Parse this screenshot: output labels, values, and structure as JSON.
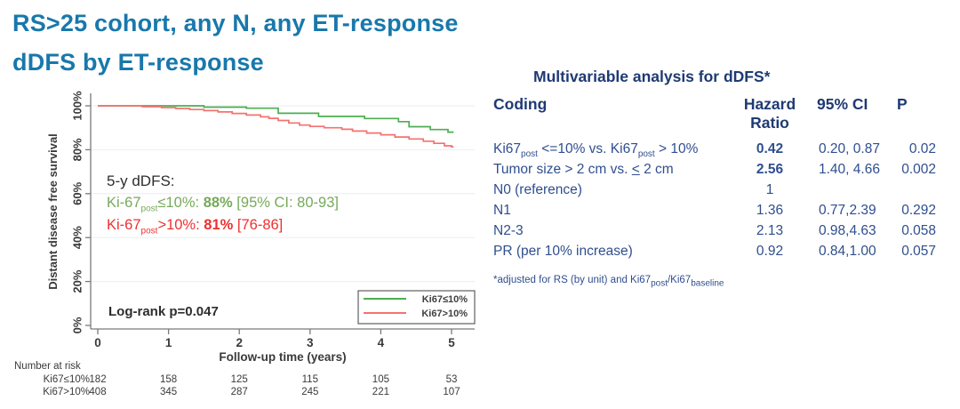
{
  "header": {
    "title_line1": "RS>25 cohort, any N, any ET-response",
    "title_line2": "dDFS by ET-response",
    "color": "#1878ab"
  },
  "chart_data": {
    "type": "line",
    "subtype": "kaplan-meier-step",
    "title": "",
    "xlabel": "Follow-up time (years)",
    "ylabel": "Distant disease free survival",
    "x_ticks": [
      "0",
      "1",
      "2",
      "3",
      "4",
      "5"
    ],
    "y_tick_labels": [
      "0%",
      "20%",
      "40%",
      "60%",
      "80%",
      "100%"
    ],
    "xlim": [
      0,
      5.3
    ],
    "ylim": [
      0,
      100
    ],
    "grid": "horizontal light gridlines at 20% steps",
    "legend_position": "inside bottom-right box",
    "series": [
      {
        "name": "Ki67≤10%",
        "color": "#4cae50",
        "five_year_dDFS": "88% [95% CI: 80-93]",
        "points": [
          [
            0,
            100
          ],
          [
            1.5,
            99.4
          ],
          [
            2.1,
            98.9
          ],
          [
            2.55,
            96.6
          ],
          [
            3.12,
            95.2
          ],
          [
            3.77,
            94.2
          ],
          [
            4.25,
            92.8
          ],
          [
            4.4,
            90.5
          ],
          [
            4.7,
            89.2
          ],
          [
            4.95,
            88.0
          ],
          [
            5.03,
            88.0
          ]
        ]
      },
      {
        "name": "Ki67>10%",
        "color": "#f4726f",
        "five_year_dDFS": "81% [76-86]",
        "points": [
          [
            0,
            100
          ],
          [
            0.63,
            99.6
          ],
          [
            0.9,
            99.2
          ],
          [
            1.1,
            98.8
          ],
          [
            1.3,
            98.3
          ],
          [
            1.5,
            97.8
          ],
          [
            1.7,
            97.2
          ],
          [
            1.9,
            96.5
          ],
          [
            2.1,
            95.8
          ],
          [
            2.3,
            95.0
          ],
          [
            2.42,
            94.3
          ],
          [
            2.55,
            93.3
          ],
          [
            2.7,
            92.2
          ],
          [
            2.85,
            91.2
          ],
          [
            3.0,
            90.6
          ],
          [
            3.2,
            90.0
          ],
          [
            3.45,
            89.3
          ],
          [
            3.6,
            88.5
          ],
          [
            3.8,
            87.6
          ],
          [
            4.0,
            86.8
          ],
          [
            4.2,
            85.8
          ],
          [
            4.4,
            84.9
          ],
          [
            4.6,
            83.9
          ],
          [
            4.75,
            82.9
          ],
          [
            4.9,
            81.8
          ],
          [
            5.0,
            81.3
          ],
          [
            5.03,
            81.3
          ]
        ]
      }
    ],
    "annotation": {
      "heading": "5-y dDFS:",
      "green": {
        "prefix": "Ki-67",
        "sub": "post",
        "mid": "≤10%: ",
        "value": "88%",
        "suffix": " [95% CI: 80-93]",
        "color": "#76a95a"
      },
      "red": {
        "prefix": "Ki-67",
        "sub": "post",
        "mid": ">10%: ",
        "value": "81%",
        "suffix": " [76-86]",
        "color": "#ee3030"
      }
    },
    "logrank": "Log-rank p=0.047",
    "number_at_risk": {
      "label": "Number at risk",
      "rows": [
        {
          "name": "Ki67≤10%",
          "values": [
            "182",
            "158",
            "125",
            "115",
            "105",
            "53"
          ]
        },
        {
          "name": "Ki67>10%",
          "values": [
            "408",
            "345",
            "287",
            "245",
            "221",
            "107"
          ]
        }
      ]
    }
  },
  "table": {
    "title": "Multivariable analysis for dDFS*",
    "header": {
      "coding": "Coding",
      "hr1": "Hazard",
      "hr2": "Ratio",
      "ci": "95% CI",
      "p": "P"
    },
    "rows": [
      {
        "coding": [
          {
            "t": "Ki67"
          },
          {
            "t": "post",
            "sub": true
          },
          {
            "t": " <=10% vs. Ki67"
          },
          {
            "t": "post",
            "sub": true
          },
          {
            "t": " > 10%"
          }
        ],
        "hr": "0.42",
        "hr_bold": true,
        "ci": "0.20, 0.87",
        "p": "0.02"
      },
      {
        "coding": [
          {
            "t": "Tumor size > 2 cm vs. "
          },
          {
            "t": "<",
            "u": true
          },
          {
            "t": " 2 cm"
          }
        ],
        "hr": "2.56",
        "hr_bold": true,
        "ci": "1.40, 4.66",
        "p": "0.002"
      },
      {
        "coding": [
          {
            "t": "N0 (reference)"
          }
        ],
        "hr": "1",
        "hr_bold": false,
        "ci": "",
        "p": ""
      },
      {
        "coding": [
          {
            "t": "N1"
          }
        ],
        "hr": "1.36",
        "hr_bold": false,
        "ci": "0.77,2.39",
        "p": "0.292"
      },
      {
        "coding": [
          {
            "t": "N2-3"
          }
        ],
        "hr": "2.13",
        "hr_bold": false,
        "ci": "0.98,4.63",
        "p": "0.058"
      },
      {
        "coding": [
          {
            "t": "PR (per 10% increase)"
          }
        ],
        "hr": "0.92",
        "hr_bold": false,
        "ci": "0.84,1.00",
        "p": "0.057"
      }
    ],
    "footnote": [
      {
        "t": "*adjusted for RS (by unit) and Ki67"
      },
      {
        "t": "post",
        "sub": true
      },
      {
        "t": "/Ki67"
      },
      {
        "t": "baseline",
        "sub": true
      }
    ],
    "colors": {
      "header": "#1f3a73",
      "body": "#2f4e8f"
    }
  }
}
